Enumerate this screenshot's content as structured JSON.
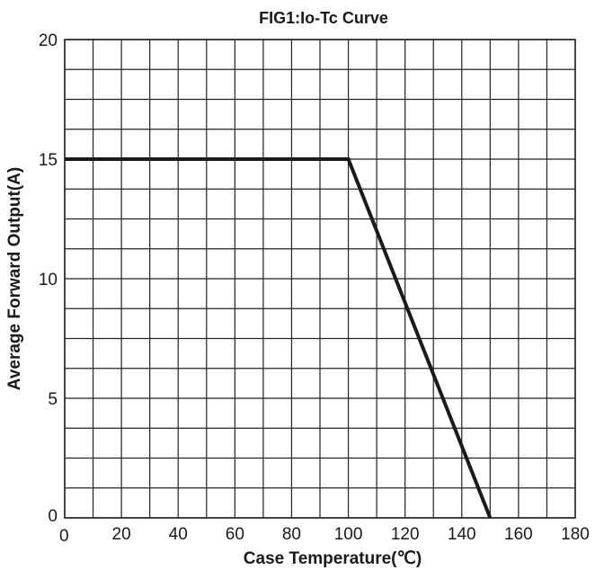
{
  "chart_data": {
    "type": "line",
    "title": "FIG1:Io-Tc Curve",
    "xlabel": "Case Temperature(℃)",
    "ylabel": "Average Forward Output(A)",
    "xlim": [
      0,
      180
    ],
    "ylim": [
      0,
      20
    ],
    "x_ticks": [
      0,
      20,
      40,
      60,
      80,
      100,
      120,
      140,
      160,
      180
    ],
    "y_ticks": [
      0,
      5,
      10,
      15,
      20
    ],
    "x_grid_step": 10,
    "y_grid_step": 1.25,
    "grid": true,
    "series": [
      {
        "x": [
          0,
          100,
          150
        ],
        "y": [
          15,
          15,
          0
        ],
        "color": "#1a1a1a"
      }
    ]
  }
}
